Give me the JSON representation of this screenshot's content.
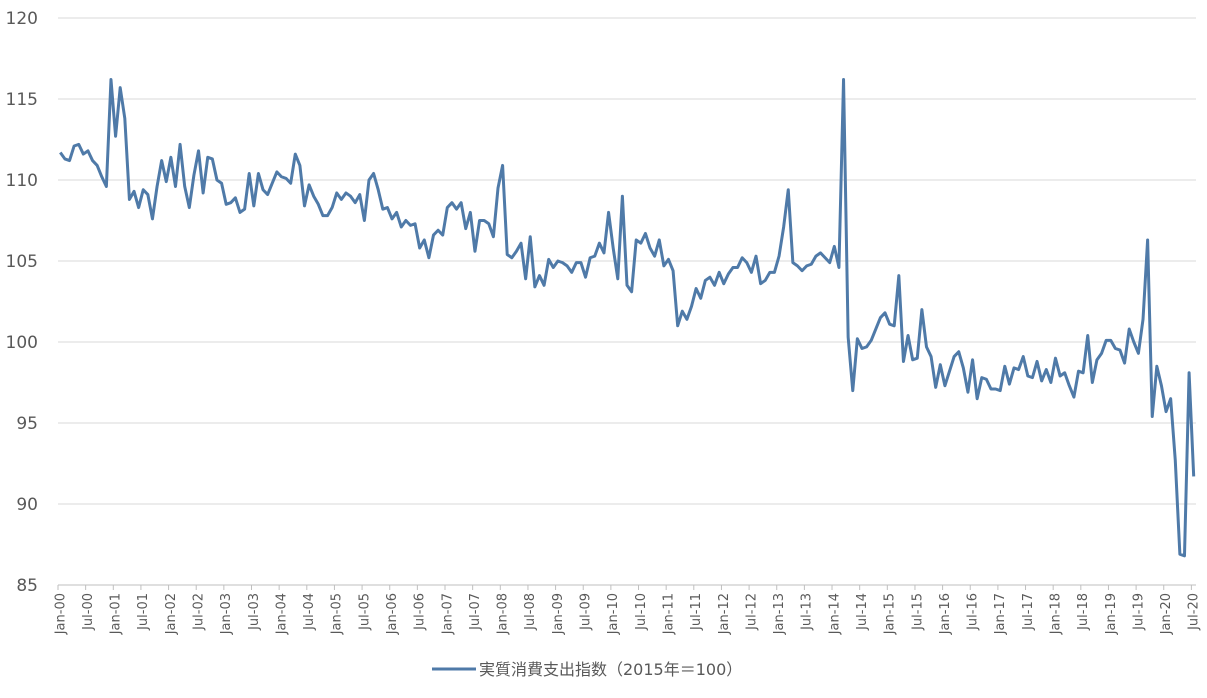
{
  "chart_data": {
    "type": "line",
    "title": "",
    "xlabel": "",
    "ylabel": "",
    "ylim": [
      85,
      120
    ],
    "yticks": [
      85,
      90,
      95,
      100,
      105,
      110,
      115,
      120
    ],
    "grid": true,
    "legend_position": "bottom",
    "line_color": "#4f7aa8",
    "x_tick_labels": [
      "Jan-00",
      "Jul-00",
      "Jan-01",
      "Jul-01",
      "Jan-02",
      "Jul-02",
      "Jan-03",
      "Jul-03",
      "Jan-04",
      "Jul-04",
      "Jan-05",
      "Jul-05",
      "Jan-06",
      "Jul-06",
      "Jan-07",
      "Jul-07",
      "Jan-08",
      "Jul-08",
      "Jan-09",
      "Jul-09",
      "Jan-10",
      "Jul-10",
      "Jan-11",
      "Jul-11",
      "Jan-12",
      "Jul-12",
      "Jan-13",
      "Jul-13",
      "Jan-14",
      "Jul-14",
      "Jan-15",
      "Jul-15",
      "Jan-16",
      "Jul-16",
      "Jan-17",
      "Jul-17",
      "Jan-18",
      "Jul-18",
      "Jan-19",
      "Jul-19",
      "Jan-20",
      "Jul-20"
    ],
    "x_start": "2000-01",
    "x_end": "2020-07",
    "series": [
      {
        "name": "実質消費支出指数（2015年＝100）",
        "values": [
          111.7,
          111.3,
          111.2,
          112.1,
          112.2,
          111.6,
          111.8,
          111.2,
          110.9,
          110.2,
          109.6,
          116.2,
          112.7,
          115.7,
          113.8,
          108.8,
          109.3,
          108.3,
          109.4,
          109.1,
          107.6,
          109.6,
          111.2,
          109.9,
          111.4,
          109.6,
          112.2,
          109.6,
          108.3,
          110.3,
          111.8,
          109.2,
          111.4,
          111.3,
          110.0,
          109.8,
          108.5,
          108.6,
          108.9,
          108.0,
          108.2,
          110.4,
          108.4,
          110.4,
          109.4,
          109.1,
          109.8,
          110.5,
          110.2,
          110.1,
          109.8,
          111.6,
          110.9,
          108.4,
          109.7,
          109.0,
          108.5,
          107.8,
          107.8,
          108.3,
          109.2,
          108.8,
          109.2,
          109.0,
          108.6,
          109.1,
          107.5,
          110.0,
          110.4,
          109.4,
          108.2,
          108.3,
          107.6,
          108.0,
          107.1,
          107.5,
          107.2,
          107.3,
          105.8,
          106.3,
          105.2,
          106.6,
          106.9,
          106.6,
          108.3,
          108.6,
          108.2,
          108.6,
          107.0,
          108.0,
          105.6,
          107.5,
          107.5,
          107.3,
          106.5,
          109.5,
          110.9,
          105.4,
          105.2,
          105.6,
          106.1,
          103.9,
          106.5,
          103.4,
          104.1,
          103.5,
          105.1,
          104.6,
          105.0,
          104.9,
          104.7,
          104.3,
          104.9,
          104.9,
          104.0,
          105.2,
          105.3,
          106.1,
          105.5,
          108.0,
          105.8,
          103.9,
          109.0,
          103.5,
          103.1,
          106.3,
          106.1,
          106.7,
          105.8,
          105.3,
          106.3,
          104.7,
          105.1,
          104.4,
          101.0,
          101.9,
          101.4,
          102.2,
          103.3,
          102.7,
          103.8,
          104.0,
          103.5,
          104.3,
          103.6,
          104.2,
          104.6,
          104.6,
          105.2,
          104.9,
          104.3,
          105.3,
          103.6,
          103.8,
          104.3,
          104.3,
          105.3,
          107.1,
          109.4,
          104.9,
          104.7,
          104.4,
          104.7,
          104.8,
          105.3,
          105.5,
          105.2,
          104.9,
          105.9,
          104.6,
          116.2,
          100.3,
          97.0,
          100.2,
          99.6,
          99.7,
          100.1,
          100.8,
          101.5,
          101.8,
          101.1,
          101.0,
          104.1,
          98.8,
          100.4,
          98.9,
          99.0,
          102.0,
          99.7,
          99.1,
          97.2,
          98.6,
          97.3,
          98.2,
          99.1,
          99.4,
          98.4,
          96.9,
          98.9,
          96.5,
          97.8,
          97.7,
          97.1,
          97.1,
          97.0,
          98.5,
          97.4,
          98.4,
          98.3,
          99.1,
          97.9,
          97.8,
          98.8,
          97.6,
          98.3,
          97.5,
          99.0,
          97.9,
          98.1,
          97.3,
          96.6,
          98.2,
          98.1,
          100.4,
          97.5,
          98.9,
          99.3,
          100.1,
          100.1,
          99.6,
          99.5,
          98.7,
          100.8,
          100.0,
          99.3,
          101.4,
          106.3,
          95.4,
          98.5,
          97.3,
          95.7,
          96.5,
          92.7,
          86.9,
          86.8,
          98.1,
          91.7
        ]
      }
    ]
  }
}
